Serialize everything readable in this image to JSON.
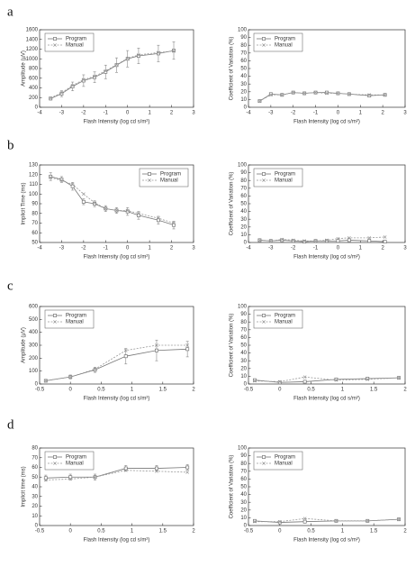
{
  "panels": [
    "a",
    "b",
    "c",
    "d"
  ],
  "chart_data": [
    {
      "type": "line",
      "xlabel": "Flash Intensity (log cd s/m²)",
      "ylabel": "Amplitude (µV)",
      "legend": "upper left",
      "xlim": [
        -4,
        3
      ],
      "xticks": [
        -4,
        -3,
        -2,
        -1,
        0,
        1,
        2,
        3
      ],
      "ylim": [
        0,
        1600
      ],
      "yticks": [
        0,
        200,
        400,
        600,
        800,
        1000,
        1200,
        1400,
        1600
      ],
      "x": [
        -3.5,
        -3,
        -2.5,
        -2,
        -1.5,
        -1,
        -0.5,
        0,
        0.5,
        1.4,
        2.1
      ],
      "series": [
        {
          "name": "Program",
          "color": "#777777",
          "style": "solid",
          "marker": "square",
          "values": [
            180,
            280,
            430,
            550,
            620,
            730,
            870,
            1000,
            1060,
            1110,
            1170
          ],
          "errors": [
            30,
            60,
            90,
            120,
            110,
            140,
            150,
            170,
            160,
            170,
            180
          ]
        },
        {
          "name": "Manual",
          "color": "#999999",
          "style": "dashed",
          "marker": "x",
          "values": [
            190,
            300,
            450,
            570,
            640,
            750,
            880,
            1010,
            1080,
            1130,
            1160
          ]
        }
      ]
    },
    {
      "type": "line",
      "xlabel": "Flash Intensity (log cd s/m²)",
      "ylabel": "Coefficient of Variation (%)",
      "legend": "upper left",
      "xlim": [
        -4,
        3
      ],
      "xticks": [
        -4,
        -3,
        -2,
        -1,
        0,
        1,
        2,
        3
      ],
      "ylim": [
        0,
        100
      ],
      "yticks": [
        0,
        10,
        20,
        30,
        40,
        50,
        60,
        70,
        80,
        90,
        100
      ],
      "x": [
        -3.5,
        -3,
        -2.5,
        -2,
        -1.5,
        -1,
        -0.5,
        0,
        0.5,
        1.4,
        2.1
      ],
      "series": [
        {
          "name": "Program",
          "color": "#777777",
          "style": "solid",
          "marker": "square",
          "values": [
            8,
            17,
            16,
            19,
            18,
            19,
            19,
            18,
            17,
            15,
            16
          ]
        },
        {
          "name": "Manual",
          "color": "#999999",
          "style": "dashed",
          "marker": "x",
          "values": [
            8,
            16,
            16,
            19,
            18,
            19,
            18,
            18,
            17,
            16,
            16
          ]
        }
      ]
    },
    {
      "type": "line",
      "xlabel": "Flash Intensity (log cd s/m²)",
      "ylabel": "Implicit Time (ms)",
      "legend": "upper right",
      "xlim": [
        -4,
        3
      ],
      "xticks": [
        -4,
        -3,
        -2,
        -1,
        0,
        1,
        2,
        3
      ],
      "ylim": [
        50,
        130
      ],
      "yticks": [
        50,
        60,
        70,
        80,
        90,
        100,
        110,
        120,
        130
      ],
      "x": [
        -3.5,
        -3,
        -2.5,
        -2,
        -1.5,
        -1,
        -0.5,
        0,
        0.5,
        1.4,
        2.1
      ],
      "series": [
        {
          "name": "Program",
          "color": "#777777",
          "style": "solid",
          "marker": "square",
          "values": [
            118,
            115,
            108,
            92,
            90,
            85,
            83,
            82,
            78,
            73,
            68
          ],
          "errors": [
            4,
            3,
            4,
            3,
            3,
            3,
            3,
            4,
            4,
            4,
            4
          ]
        },
        {
          "name": "Manual",
          "color": "#999999",
          "style": "dashed",
          "marker": "x",
          "values": [
            117,
            114,
            110,
            100,
            91,
            85,
            83,
            83,
            80,
            75,
            70
          ]
        }
      ]
    },
    {
      "type": "line",
      "xlabel": "Flash Intensity (log cd s/m²)",
      "ylabel": "Coefficient of Variation (%)",
      "legend": "upper left",
      "xlim": [
        -4,
        3
      ],
      "xticks": [
        -4,
        -3,
        -2,
        -1,
        0,
        1,
        2,
        3
      ],
      "ylim": [
        0,
        100
      ],
      "yticks": [
        0,
        10,
        20,
        30,
        40,
        50,
        60,
        70,
        80,
        90,
        100
      ],
      "x": [
        -3.5,
        -3,
        -2.5,
        -2,
        -1.5,
        -1,
        -0.5,
        0,
        0.5,
        1.4,
        2.1
      ],
      "series": [
        {
          "name": "Program",
          "color": "#777777",
          "style": "solid",
          "marker": "square",
          "values": [
            3,
            2,
            3,
            2,
            1,
            2,
            2,
            2,
            3,
            2,
            1
          ]
        },
        {
          "name": "Manual",
          "color": "#999999",
          "style": "dashed",
          "marker": "x",
          "values": [
            3,
            2,
            4,
            3,
            2,
            2,
            3,
            5,
            6,
            6,
            7
          ]
        }
      ]
    },
    {
      "type": "line",
      "xlabel": "Flash Intensity (log cd s/m²)",
      "ylabel": "Amplitude (µV)",
      "legend": "upper left",
      "xlim": [
        -0.5,
        2
      ],
      "xticks": [
        -0.5,
        0,
        0.5,
        1,
        1.5,
        2
      ],
      "ylim": [
        0,
        600
      ],
      "yticks": [
        0,
        100,
        200,
        300,
        400,
        500,
        600
      ],
      "x": [
        -0.4,
        0,
        0.4,
        0.9,
        1.4,
        1.9
      ],
      "series": [
        {
          "name": "Program",
          "color": "#777777",
          "style": "solid",
          "marker": "square",
          "values": [
            25,
            55,
            110,
            215,
            260,
            270
          ],
          "errors": [
            5,
            15,
            20,
            60,
            80,
            60
          ]
        },
        {
          "name": "Manual",
          "color": "#999999",
          "style": "dashed",
          "marker": "x",
          "values": [
            25,
            55,
            115,
            260,
            300,
            300
          ]
        }
      ]
    },
    {
      "type": "line",
      "xlabel": "Flash Intensity (log cd s/m²)",
      "ylabel": "Coefficient of Variation (%)",
      "legend": "upper left",
      "xlim": [
        -0.5,
        2
      ],
      "xticks": [
        -0.5,
        0,
        0.5,
        1,
        1.5,
        2
      ],
      "ylim": [
        0,
        100
      ],
      "yticks": [
        0,
        10,
        20,
        30,
        40,
        50,
        60,
        70,
        80,
        90,
        100
      ],
      "x": [
        -0.4,
        0,
        0.4,
        0.9,
        1.4,
        1.9
      ],
      "series": [
        {
          "name": "Program",
          "color": "#777777",
          "style": "solid",
          "marker": "square",
          "values": [
            5,
            2,
            3,
            6,
            7,
            8
          ]
        },
        {
          "name": "Manual",
          "color": "#999999",
          "style": "dashed",
          "marker": "x",
          "values": [
            4,
            3,
            9,
            5,
            6,
            8
          ]
        }
      ]
    },
    {
      "type": "line",
      "xlabel": "Flash Intensity (log cd s/m²)",
      "ylabel": "Implicit time (ms)",
      "legend": "upper left",
      "xlim": [
        -0.5,
        2
      ],
      "xticks": [
        -0.5,
        0,
        0.5,
        1,
        1.5,
        2
      ],
      "ylim": [
        0,
        80
      ],
      "yticks": [
        0,
        10,
        20,
        30,
        40,
        50,
        60,
        70,
        80
      ],
      "x": [
        -0.4,
        0,
        0.4,
        0.9,
        1.4,
        1.9
      ],
      "series": [
        {
          "name": "Program",
          "color": "#777777",
          "style": "solid",
          "marker": "square",
          "values": [
            49,
            50,
            50,
            59,
            59,
            60
          ],
          "errors": [
            3,
            3,
            3,
            3,
            3,
            3
          ]
        },
        {
          "name": "Manual",
          "color": "#999999",
          "style": "dashed",
          "marker": "x",
          "values": [
            47,
            48,
            50,
            57,
            56,
            55
          ]
        }
      ]
    },
    {
      "type": "line",
      "xlabel": "Flash Intensity (log cd s/m²)",
      "ylabel": "Coefficient of Variation (%)",
      "legend": "upper left",
      "xlim": [
        -0.5,
        2
      ],
      "xticks": [
        -0.5,
        0,
        0.5,
        1,
        1.5,
        2
      ],
      "ylim": [
        0,
        100
      ],
      "yticks": [
        0,
        10,
        20,
        30,
        40,
        50,
        60,
        70,
        80,
        90,
        100
      ],
      "x": [
        -0.4,
        0,
        0.4,
        0.9,
        1.4,
        1.9
      ],
      "series": [
        {
          "name": "Program",
          "color": "#777777",
          "style": "solid",
          "marker": "square",
          "values": [
            6,
            4,
            5,
            6,
            6,
            8
          ]
        },
        {
          "name": "Manual",
          "color": "#999999",
          "style": "dashed",
          "marker": "x",
          "values": [
            5,
            5,
            9,
            6,
            6,
            8
          ]
        }
      ]
    }
  ]
}
